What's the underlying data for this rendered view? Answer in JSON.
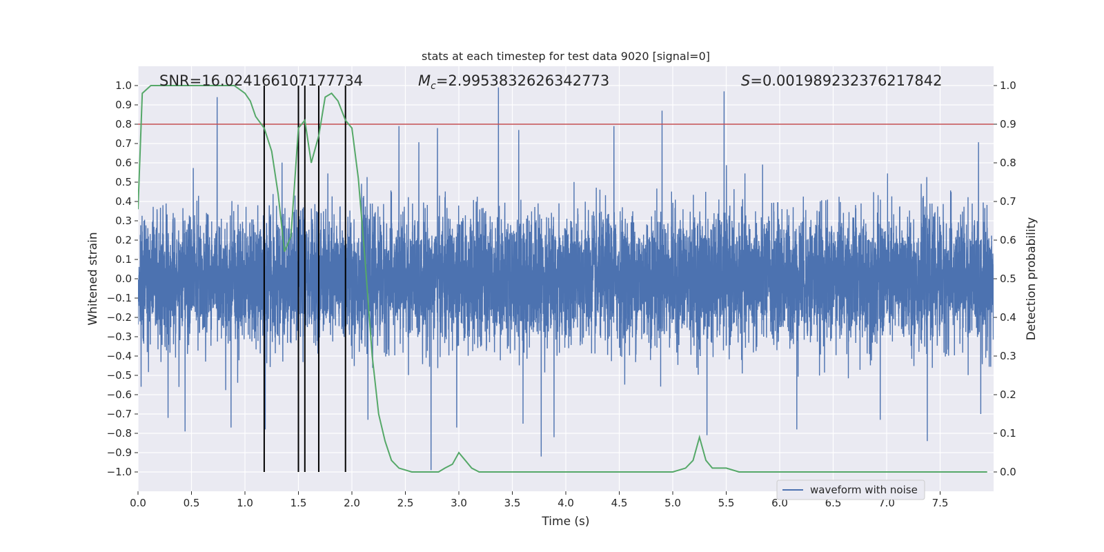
{
  "chart_data": {
    "type": "line",
    "title": "stats at each timestep for test data 9020 [signal=0]",
    "xlabel": "Time (s)",
    "ylabel": "Whitened strain",
    "y2label": "Detection probability",
    "xlim": [
      0,
      8.0
    ],
    "ylim": [
      -1.1,
      1.1
    ],
    "y2lim": [
      -0.05,
      1.05
    ],
    "xticks": [
      0.0,
      0.5,
      1.0,
      1.5,
      2.0,
      2.5,
      3.0,
      3.5,
      4.0,
      4.5,
      5.0,
      5.5,
      6.0,
      6.5,
      7.0,
      7.5
    ],
    "xtick_labels": [
      "0.0",
      "0.5",
      "1.0",
      "1.5",
      "2.0",
      "2.5",
      "3.0",
      "3.5",
      "4.0",
      "4.5",
      "5.0",
      "5.5",
      "6.0",
      "6.5",
      "7.0",
      "7.5"
    ],
    "yticks": [
      1.0,
      0.9,
      0.8,
      0.7,
      0.6,
      0.5,
      0.4,
      0.3,
      0.2,
      0.1,
      0.0,
      -0.1,
      -0.2,
      -0.3,
      -0.4,
      -0.5,
      -0.6,
      -0.7,
      -0.8,
      -0.9,
      -1.0
    ],
    "ytick_labels": [
      "1.0",
      "0.9",
      "0.8",
      "0.7",
      "0.6",
      "0.5",
      "0.4",
      "0.3",
      "0.2",
      "0.1",
      "0.0",
      "−0.1",
      "−0.2",
      "−0.3",
      "−0.4",
      "−0.5",
      "−0.6",
      "−0.7",
      "−0.8",
      "−0.9",
      "−1.0"
    ],
    "y2ticks": [
      1.0,
      0.9,
      0.8,
      0.7,
      0.6,
      0.5,
      0.4,
      0.3,
      0.2,
      0.1,
      0.0
    ],
    "y2tick_labels": [
      "1.0",
      "0.9",
      "0.8",
      "0.7",
      "0.6",
      "0.5",
      "0.4",
      "0.3",
      "0.2",
      "0.1",
      "0.0"
    ],
    "annotations": {
      "snr": "SNR=16.024166107177734",
      "mc": "M_c=2.9953832626342773",
      "mc_main": "M",
      "mc_sub": "c",
      "mc_value": "=2.9953832626342773",
      "s_main": "S",
      "s_value": "=0.001989232376217842"
    },
    "threshold": {
      "value": 0.9,
      "axis": "y2",
      "color": "#c44e52"
    },
    "event_lines": [
      1.18,
      1.5,
      1.56,
      1.69,
      1.94
    ],
    "series": [
      {
        "name": "waveform with noise",
        "color": "#4c72b0",
        "axis": "y",
        "samples": 8000,
        "sample_rate": 1000,
        "spikes": [
          {
            "t": 0.74,
            "v": 0.94
          },
          {
            "t": 3.37,
            "v": 0.99
          },
          {
            "t": 5.48,
            "v": 0.97
          },
          {
            "t": 4.9,
            "v": 0.87
          },
          {
            "t": 2.44,
            "v": 0.79
          },
          {
            "t": 2.8,
            "v": 0.78
          },
          {
            "t": 3.56,
            "v": 0.77
          },
          {
            "t": 4.45,
            "v": 0.79
          },
          {
            "t": 2.74,
            "v": -0.99
          },
          {
            "t": 3.77,
            "v": -0.92
          },
          {
            "t": 3.89,
            "v": -0.82
          },
          {
            "t": 5.32,
            "v": -0.81
          },
          {
            "t": 7.38,
            "v": -0.84
          },
          {
            "t": 6.16,
            "v": -0.78
          },
          {
            "t": 0.44,
            "v": -0.79
          },
          {
            "t": 0.87,
            "v": -0.77
          },
          {
            "t": 1.19,
            "v": -0.78
          },
          {
            "t": 3.6,
            "v": -0.75
          },
          {
            "t": 2.98,
            "v": -0.77
          },
          {
            "t": 2.15,
            "v": -0.73
          },
          {
            "t": 6.94,
            "v": -0.73
          },
          {
            "t": 7.88,
            "v": -0.7
          }
        ]
      },
      {
        "name": "detection probability",
        "color": "#55a868",
        "axis": "y2",
        "x": [
          0.0,
          0.04,
          0.12,
          0.3,
          0.5,
          0.7,
          0.8,
          0.9,
          0.95,
          1.0,
          1.05,
          1.1,
          1.18,
          1.25,
          1.31,
          1.37,
          1.43,
          1.5,
          1.56,
          1.62,
          1.69,
          1.75,
          1.81,
          1.87,
          1.94,
          2.0,
          2.06,
          2.12,
          2.19,
          2.25,
          2.31,
          2.37,
          2.44,
          2.56,
          2.69,
          2.81,
          2.87,
          2.94,
          3.0,
          3.06,
          3.12,
          3.19,
          3.25,
          3.31,
          3.44,
          3.62,
          3.75,
          3.87,
          4.0,
          4.25,
          4.5,
          4.75,
          5.0,
          5.12,
          5.19,
          5.25,
          5.31,
          5.37,
          5.5,
          5.62,
          5.81,
          6.0,
          6.12,
          6.31,
          6.5,
          6.75,
          7.0,
          7.25,
          7.5,
          7.75,
          7.94
        ],
        "y": [
          0.68,
          0.98,
          1.0,
          1.0,
          1.0,
          1.0,
          1.0,
          1.0,
          0.99,
          0.98,
          0.96,
          0.92,
          0.89,
          0.83,
          0.72,
          0.57,
          0.61,
          0.89,
          0.91,
          0.8,
          0.87,
          0.97,
          0.98,
          0.96,
          0.91,
          0.89,
          0.76,
          0.56,
          0.3,
          0.15,
          0.08,
          0.03,
          0.01,
          0.0,
          0.0,
          0.0,
          0.01,
          0.02,
          0.05,
          0.03,
          0.01,
          0.0,
          0.0,
          0.0,
          0.0,
          0.0,
          0.0,
          0.0,
          0.0,
          0.0,
          0.0,
          0.0,
          0.0,
          0.01,
          0.03,
          0.09,
          0.03,
          0.01,
          0.01,
          0.0,
          0.0,
          0.0,
          0.0,
          0.0,
          0.0,
          0.0,
          0.0,
          0.0,
          0.0,
          0.0,
          0.0
        ]
      }
    ],
    "legend": {
      "placement": "bottom-right",
      "entries": [
        {
          "label": "waveform with noise",
          "color": "#4c72b0"
        }
      ]
    },
    "grid": true
  }
}
